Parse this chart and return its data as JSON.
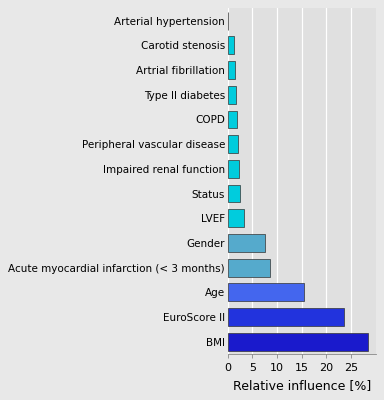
{
  "categories": [
    "BMI",
    "EuroScore II",
    "Age",
    "Acute myocardial infarction (< 3 months)",
    "Gender",
    "LVEF",
    "Status",
    "Impaired renal function",
    "Peripheral vascular disease",
    "COPD",
    "Type II diabetes",
    "Artrial fibrillation",
    "Carotid stenosis",
    "Arterial hypertension"
  ],
  "values": [
    28.5,
    23.5,
    15.5,
    8.5,
    7.5,
    3.2,
    2.5,
    2.2,
    2.0,
    1.9,
    1.7,
    1.5,
    1.2,
    0.05
  ],
  "colors": [
    "#1a1acc",
    "#2233dd",
    "#4466ee",
    "#55aacc",
    "#55aacc",
    "#00ccdd",
    "#00ccdd",
    "#00ccdd",
    "#00ccdd",
    "#00ccdd",
    "#00ccdd",
    "#00ccdd",
    "#00ccdd",
    "#00ccdd"
  ],
  "xlabel": "Relative influence [%]",
  "xlim": [
    0,
    30
  ],
  "xticks": [
    0,
    5,
    10,
    15,
    20,
    25
  ],
  "background_color": "#e8e8e8",
  "plot_bg_color": "#e0e0e0",
  "grid_color": "#ffffff",
  "bar_edge_color": "#333333",
  "label_fontsize": 7.5,
  "tick_fontsize": 8.0,
  "xlabel_fontsize": 9.0,
  "bar_height": 0.72
}
